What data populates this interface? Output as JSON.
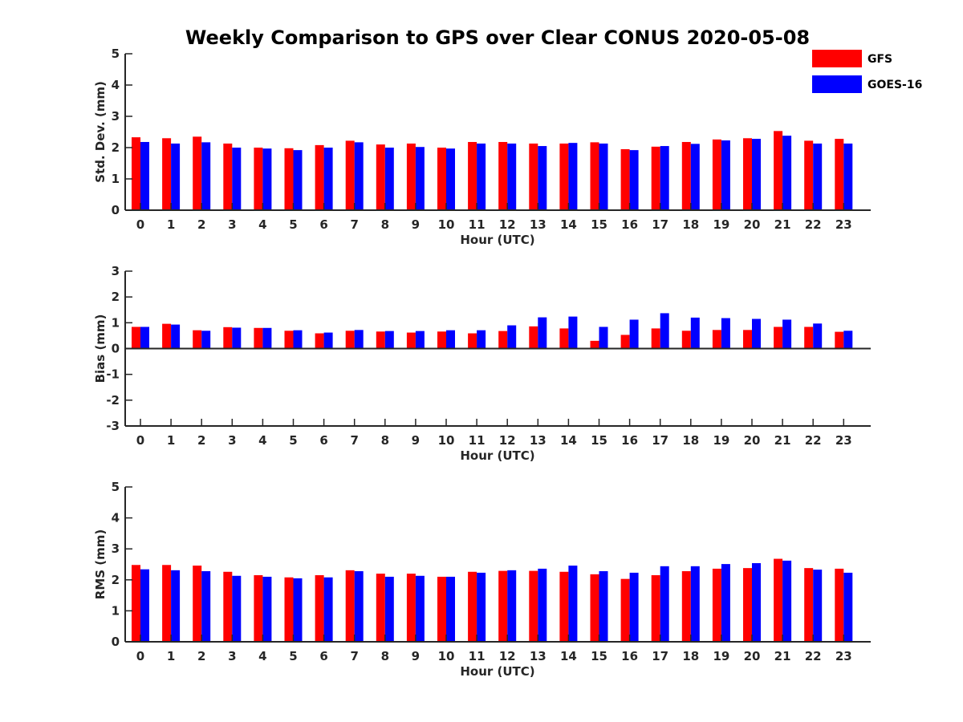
{
  "figure": {
    "title": "Weekly Comparison to GPS over Clear CONUS 2020-05-08"
  },
  "legend": {
    "position": "top-right",
    "entries": [
      {
        "label": "GFS",
        "color": "#ff0000"
      },
      {
        "label": "GOES-16",
        "color": "#0000ff"
      }
    ]
  },
  "chart_data": [
    {
      "type": "bar",
      "xlabel": "Hour (UTC)",
      "ylabel": "Std. Dev. (mm)",
      "ylim": [
        0,
        5
      ],
      "yticks": [
        0,
        1,
        2,
        3,
        4,
        5
      ],
      "grid": false,
      "categories": [
        "0",
        "1",
        "2",
        "3",
        "4",
        "5",
        "6",
        "7",
        "8",
        "9",
        "10",
        "11",
        "12",
        "13",
        "14",
        "15",
        "16",
        "17",
        "18",
        "19",
        "20",
        "21",
        "22",
        "23"
      ],
      "series": [
        {
          "name": "GFS",
          "color": "#ff0000",
          "values": [
            2.33,
            2.3,
            2.35,
            2.13,
            2.0,
            1.98,
            2.08,
            2.22,
            2.1,
            2.13,
            2.0,
            2.18,
            2.18,
            2.13,
            2.13,
            2.17,
            1.95,
            2.03,
            2.18,
            2.26,
            2.3,
            2.53,
            2.22,
            2.28
          ]
        },
        {
          "name": "GOES-16",
          "color": "#0000ff",
          "values": [
            2.18,
            2.13,
            2.17,
            2.0,
            1.97,
            1.92,
            2.0,
            2.17,
            2.0,
            2.02,
            1.97,
            2.13,
            2.13,
            2.05,
            2.15,
            2.13,
            1.92,
            2.05,
            2.12,
            2.23,
            2.28,
            2.38,
            2.13,
            2.13
          ]
        }
      ]
    },
    {
      "type": "bar",
      "xlabel": "Hour (UTC)",
      "ylabel": "Bias (mm)",
      "ylim": [
        -3,
        3
      ],
      "yticks": [
        -3,
        -2,
        -1,
        0,
        1,
        2,
        3
      ],
      "grid": false,
      "categories": [
        "0",
        "1",
        "2",
        "3",
        "4",
        "5",
        "6",
        "7",
        "8",
        "9",
        "10",
        "11",
        "12",
        "13",
        "14",
        "15",
        "16",
        "17",
        "18",
        "19",
        "20",
        "21",
        "22",
        "23"
      ],
      "series": [
        {
          "name": "GFS",
          "color": "#ff0000",
          "values": [
            0.84,
            0.96,
            0.71,
            0.83,
            0.8,
            0.69,
            0.59,
            0.69,
            0.66,
            0.62,
            0.66,
            0.59,
            0.68,
            0.86,
            0.78,
            0.3,
            0.53,
            0.78,
            0.69,
            0.72,
            0.72,
            0.84,
            0.84,
            0.65
          ]
        },
        {
          "name": "GOES-16",
          "color": "#0000ff",
          "values": [
            0.84,
            0.93,
            0.69,
            0.81,
            0.8,
            0.71,
            0.62,
            0.72,
            0.68,
            0.68,
            0.71,
            0.71,
            0.9,
            1.21,
            1.24,
            0.84,
            1.12,
            1.37,
            1.2,
            1.18,
            1.15,
            1.12,
            0.97,
            0.69
          ]
        }
      ]
    },
    {
      "type": "bar",
      "xlabel": "Hour (UTC)",
      "ylabel": "RMS (mm)",
      "ylim": [
        0,
        5
      ],
      "yticks": [
        0,
        1,
        2,
        3,
        4,
        5
      ],
      "grid": false,
      "categories": [
        "0",
        "1",
        "2",
        "3",
        "4",
        "5",
        "6",
        "7",
        "8",
        "9",
        "10",
        "11",
        "12",
        "13",
        "14",
        "15",
        "16",
        "17",
        "18",
        "19",
        "20",
        "21",
        "22",
        "23"
      ],
      "series": [
        {
          "name": "GFS",
          "color": "#ff0000",
          "values": [
            2.48,
            2.48,
            2.46,
            2.26,
            2.15,
            2.08,
            2.15,
            2.31,
            2.2,
            2.2,
            2.1,
            2.26,
            2.29,
            2.29,
            2.26,
            2.18,
            2.03,
            2.15,
            2.28,
            2.36,
            2.38,
            2.68,
            2.38,
            2.36
          ]
        },
        {
          "name": "GOES-16",
          "color": "#0000ff",
          "values": [
            2.34,
            2.31,
            2.28,
            2.13,
            2.1,
            2.05,
            2.08,
            2.28,
            2.1,
            2.13,
            2.1,
            2.23,
            2.31,
            2.36,
            2.46,
            2.28,
            2.23,
            2.44,
            2.44,
            2.51,
            2.54,
            2.62,
            2.33,
            2.23
          ]
        }
      ]
    }
  ]
}
